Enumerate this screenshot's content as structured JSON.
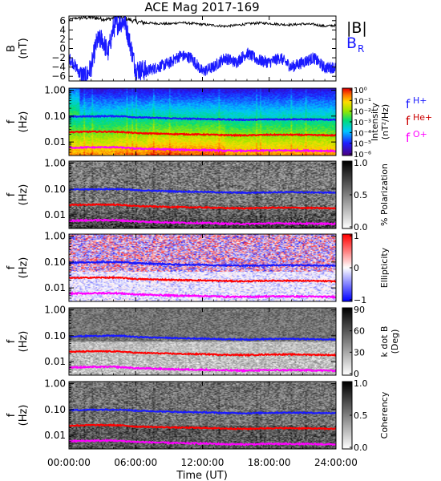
{
  "chart_data": {
    "type": "heatmap",
    "title": "ACE Mag 2017-169",
    "xlabel": "Time (UT)",
    "x_ticks": [
      "00:00:00",
      "06:00:00",
      "12:00:00",
      "18:00:00",
      "24:00:00"
    ],
    "x_range_hours": [
      0,
      24
    ],
    "colors": {
      "B_total": "#000000",
      "B_R": "#1a1aff",
      "f_H": "#1a1aff",
      "f_He": "#ff0000",
      "f_O": "#ff00ff"
    },
    "panels": [
      {
        "id": "b-field",
        "type": "line",
        "ylabel": "B",
        "ylabel_unit": "(nT)",
        "ylim": [
          -7,
          7
        ],
        "y_ticks": [
          "6",
          "4",
          "2",
          "0",
          "−2",
          "−4",
          "−6"
        ],
        "legend": [
          {
            "label": "|B|",
            "color": "#000000"
          },
          {
            "label": "B",
            "sub": "R",
            "color": "#1a1aff"
          }
        ],
        "series": [
          {
            "name": "|B|",
            "x": [
              0,
              0.5,
              1,
              2,
              3,
              3.5,
              4,
              4.5,
              5,
              6,
              7,
              8,
              9,
              10,
              11,
              12,
              13,
              14,
              15,
              16,
              17,
              18,
              19,
              20,
              21,
              22,
              23,
              24
            ],
            "y": [
              6.2,
              6.5,
              6.6,
              6.7,
              6.4,
              6.3,
              6.6,
              6.8,
              6.5,
              5.8,
              5.5,
              5.4,
              5.3,
              5.6,
              5.4,
              5.2,
              5.0,
              4.8,
              5.0,
              5.3,
              5.5,
              5.4,
              5.2,
              5.1,
              5.3,
              5.2,
              4.8,
              5.0
            ]
          },
          {
            "name": "B_R",
            "x": [
              0,
              0.5,
              1,
              1.5,
              2,
              2.5,
              3,
              3.5,
              4,
              4.5,
              5,
              5.5,
              6,
              7,
              8,
              9,
              10,
              11,
              12,
              13,
              14,
              15,
              16,
              17,
              18,
              19,
              20,
              21,
              22,
              23,
              24
            ],
            "y": [
              -2.0,
              -3.5,
              -5.5,
              -6.2,
              -4.0,
              1.5,
              2.0,
              -1.0,
              4.5,
              5.5,
              6.0,
              1.0,
              -4.5,
              -4.8,
              -4.0,
              -3.2,
              -1.5,
              -2.0,
              -5.0,
              -4.0,
              -2.0,
              -3.0,
              -1.0,
              -2.5,
              -3.0,
              -2.0,
              -4.0,
              -3.0,
              -2.0,
              -4.2,
              -4.0
            ]
          }
        ]
      },
      {
        "id": "intensity",
        "type": "heatmap",
        "ylabel": "f",
        "ylabel_unit": "(Hz)",
        "log_scale": true,
        "ylim": [
          0.003,
          1.2
        ],
        "y_ticks": [
          "1.00",
          "0.10",
          "0.01"
        ],
        "colorbar": "rainbow",
        "colorbar_label": "Intensity",
        "colorbar_unit": "(nT²/Hz)",
        "colorbar_ticks": [
          "10⁰",
          "10⁻¹",
          "10⁻²",
          "10⁻³",
          "10⁻⁴",
          "10⁻⁵",
          "10⁻⁶"
        ],
        "gyro_labels": [
          {
            "base": "f",
            "sub": "H+",
            "color": "#1a1aff"
          },
          {
            "base": "f",
            "sub": "He+",
            "color": "#cc0000"
          },
          {
            "base": "f",
            "sub": "O+",
            "color": "#ff00ff"
          }
        ]
      },
      {
        "id": "polarization",
        "type": "heatmap",
        "ylabel": "f",
        "ylabel_unit": "(Hz)",
        "log_scale": true,
        "y_ticks": [
          "1.00",
          "0.10",
          "0.01"
        ],
        "colorbar": "gray",
        "colorbar_label": "% Polarization",
        "colorbar_ticks": [
          "1.0",
          "0.5",
          "0.0"
        ]
      },
      {
        "id": "ellipticity",
        "type": "heatmap",
        "ylabel": "f",
        "ylabel_unit": "(Hz)",
        "log_scale": true,
        "y_ticks": [
          "1.00",
          "0.10",
          "0.01"
        ],
        "colorbar": "bwr",
        "colorbar_label": "Ellipticity",
        "colorbar_ticks": [
          "1",
          "0",
          "−1"
        ]
      },
      {
        "id": "kdotb",
        "type": "heatmap",
        "ylabel": "f",
        "ylabel_unit": "(Hz)",
        "log_scale": true,
        "y_ticks": [
          "1.00",
          "0.10",
          "0.01"
        ],
        "colorbar": "gray",
        "colorbar_label": "k dot B",
        "colorbar_unit": "(Deg)",
        "colorbar_ticks": [
          "90",
          "60",
          "30",
          "0"
        ]
      },
      {
        "id": "coherency",
        "type": "heatmap",
        "ylabel": "f",
        "ylabel_unit": "(Hz)",
        "log_scale": true,
        "y_ticks": [
          "1.00",
          "0.10",
          "0.01"
        ],
        "colorbar": "gray",
        "colorbar_label": "Coherency",
        "colorbar_ticks": [
          "1.0",
          "0.5",
          "0.0"
        ]
      }
    ],
    "gyrofrequency_lines": [
      {
        "name": "f_H+",
        "color": "#1a1aff",
        "x": [
          0,
          2,
          4,
          5,
          6,
          8,
          10,
          12,
          14,
          16,
          18,
          20,
          22,
          24
        ],
        "y": [
          0.095,
          0.098,
          0.1,
          0.098,
          0.09,
          0.085,
          0.08,
          0.078,
          0.074,
          0.072,
          0.075,
          0.076,
          0.074,
          0.073
        ]
      },
      {
        "name": "f_He+",
        "color": "#ff0000",
        "x": [
          0,
          2,
          4,
          5,
          6,
          8,
          10,
          12,
          14,
          16,
          18,
          20,
          22,
          24
        ],
        "y": [
          0.024,
          0.025,
          0.025,
          0.024,
          0.022,
          0.021,
          0.02,
          0.0195,
          0.0185,
          0.018,
          0.019,
          0.019,
          0.0185,
          0.018
        ]
      },
      {
        "name": "f_O+",
        "color": "#ff00ff",
        "x": [
          0,
          2,
          4,
          5,
          6,
          8,
          10,
          12,
          14,
          16,
          18,
          20,
          22,
          24
        ],
        "y": [
          0.006,
          0.0062,
          0.0063,
          0.006,
          0.0056,
          0.0053,
          0.005,
          0.0049,
          0.0046,
          0.0045,
          0.0047,
          0.0047,
          0.0046,
          0.0045
        ]
      }
    ]
  }
}
